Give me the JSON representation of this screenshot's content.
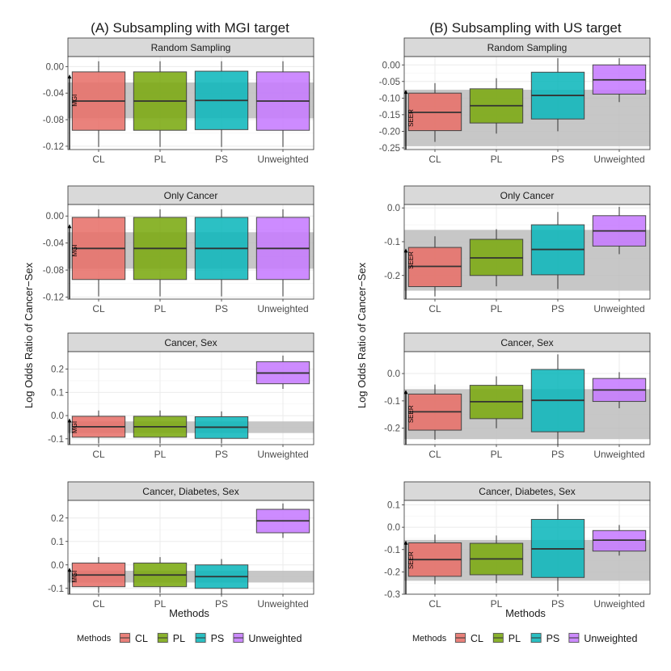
{
  "colors": {
    "CL": "#e8716a",
    "PL": "#7caa12",
    "PS": "#0fb8bc",
    "Unweighted": "#c77cff",
    "band": "#bdbdbd",
    "strip": "#d9d9d9",
    "grid": "#ebebeb"
  },
  "legend": {
    "title": "Methods",
    "items": [
      "CL",
      "PL",
      "PS",
      "Unweighted"
    ]
  },
  "shared_ylabel": "Log Odds Ratio of Cancer−Sex",
  "xlabel": "Methods",
  "chart_data": [
    {
      "type": "box",
      "column_title": "(A) Subsampling with MGI target",
      "panel": "Random Sampling",
      "target_label": "MGI",
      "band": [
        -0.078,
        -0.024
      ],
      "arrow_to": -0.012,
      "ylim": [
        -0.125,
        0.015
      ],
      "yticks": [
        0.0,
        -0.04,
        -0.08,
        -0.12
      ],
      "ytick_labels": [
        "0.00",
        "-0.04",
        "-0.08",
        "-0.12"
      ],
      "categories": [
        "CL",
        "PL",
        "PS",
        "Unweighted"
      ],
      "boxes": [
        {
          "method": "CL",
          "q1": -0.096,
          "median": -0.052,
          "q3": -0.008,
          "low": -0.121,
          "high": 0.008
        },
        {
          "method": "PL",
          "q1": -0.096,
          "median": -0.052,
          "q3": -0.008,
          "low": -0.121,
          "high": 0.008
        },
        {
          "method": "PS",
          "q1": -0.095,
          "median": -0.051,
          "q3": -0.007,
          "low": -0.121,
          "high": 0.008
        },
        {
          "method": "Unweighted",
          "q1": -0.096,
          "median": -0.052,
          "q3": -0.008,
          "low": -0.121,
          "high": 0.008
        }
      ]
    },
    {
      "type": "box",
      "column_title": "(B) Subsampling with US target",
      "panel": "Random Sampling",
      "target_label": "SEER",
      "band": [
        -0.245,
        -0.075
      ],
      "arrow_to": -0.075,
      "ylim": [
        -0.255,
        0.025
      ],
      "yticks": [
        0.0,
        -0.05,
        -0.1,
        -0.15,
        -0.2,
        -0.25
      ],
      "ytick_labels": [
        "0.00",
        "-0.05",
        "-0.10",
        "-0.15",
        "-0.20",
        "-0.25"
      ],
      "categories": [
        "CL",
        "PL",
        "PS",
        "Unweighted"
      ],
      "boxes": [
        {
          "method": "CL",
          "q1": -0.198,
          "median": -0.143,
          "q3": -0.085,
          "low": -0.232,
          "high": -0.055
        },
        {
          "method": "PL",
          "q1": -0.175,
          "median": -0.123,
          "q3": -0.072,
          "low": -0.207,
          "high": -0.04
        },
        {
          "method": "PS",
          "q1": -0.163,
          "median": -0.092,
          "q3": -0.022,
          "low": -0.2,
          "high": 0.02
        },
        {
          "method": "Unweighted",
          "q1": -0.088,
          "median": -0.045,
          "q3": 0.0,
          "low": -0.112,
          "high": 0.02
        }
      ]
    },
    {
      "type": "box",
      "panel": "Only Cancer",
      "target_label": "MGI",
      "band": [
        -0.078,
        -0.024
      ],
      "arrow_to": -0.012,
      "ylim": [
        -0.123,
        0.017
      ],
      "yticks": [
        0.0,
        -0.04,
        -0.08,
        -0.12
      ],
      "ytick_labels": [
        "0.00",
        "-0.04",
        "-0.08",
        "-0.12"
      ],
      "categories": [
        "CL",
        "PL",
        "PS",
        "Unweighted"
      ],
      "boxes": [
        {
          "method": "CL",
          "q1": -0.094,
          "median": -0.048,
          "q3": -0.002,
          "low": -0.119,
          "high": 0.01
        },
        {
          "method": "PL",
          "q1": -0.094,
          "median": -0.048,
          "q3": -0.002,
          "low": -0.119,
          "high": 0.01
        },
        {
          "method": "PS",
          "q1": -0.094,
          "median": -0.048,
          "q3": -0.002,
          "low": -0.119,
          "high": 0.01
        },
        {
          "method": "Unweighted",
          "q1": -0.094,
          "median": -0.048,
          "q3": -0.002,
          "low": -0.119,
          "high": 0.01
        }
      ]
    },
    {
      "type": "box",
      "panel": "Only Cancer",
      "target_label": "SEER",
      "band": [
        -0.245,
        -0.065
      ],
      "arrow_to": -0.12,
      "ylim": [
        -0.27,
        0.01
      ],
      "yticks": [
        0.0,
        -0.1,
        -0.2
      ],
      "ytick_labels": [
        "0.0",
        "-0.1",
        "-0.2"
      ],
      "categories": [
        "CL",
        "PL",
        "PS",
        "Unweighted"
      ],
      "boxes": [
        {
          "method": "CL",
          "q1": -0.233,
          "median": -0.173,
          "q3": -0.117,
          "low": -0.262,
          "high": -0.084
        },
        {
          "method": "PL",
          "q1": -0.2,
          "median": -0.148,
          "q3": -0.093,
          "low": -0.232,
          "high": -0.063
        },
        {
          "method": "PS",
          "q1": -0.198,
          "median": -0.123,
          "q3": -0.05,
          "low": -0.24,
          "high": -0.012
        },
        {
          "method": "Unweighted",
          "q1": -0.113,
          "median": -0.068,
          "q3": -0.023,
          "low": -0.137,
          "high": 0.003
        }
      ]
    },
    {
      "type": "box",
      "panel": "Cancer, Sex",
      "target_label": "MGI",
      "band": [
        -0.075,
        -0.025
      ],
      "arrow_to": -0.012,
      "ylim": [
        -0.125,
        0.275
      ],
      "yticks": [
        0.2,
        0.1,
        0.0,
        -0.1
      ],
      "ytick_labels": [
        "0.2",
        "0.1",
        "0.0",
        "-0.1"
      ],
      "categories": [
        "CL",
        "PL",
        "PS",
        "Unweighted"
      ],
      "boxes": [
        {
          "method": "CL",
          "q1": -0.093,
          "median": -0.048,
          "q3": -0.003,
          "low": -0.12,
          "high": 0.022
        },
        {
          "method": "PL",
          "q1": -0.093,
          "median": -0.048,
          "q3": -0.003,
          "low": -0.12,
          "high": 0.022
        },
        {
          "method": "PS",
          "q1": -0.098,
          "median": -0.05,
          "q3": -0.005,
          "low": -0.12,
          "high": 0.018
        },
        {
          "method": "Unweighted",
          "q1": 0.137,
          "median": 0.183,
          "q3": 0.232,
          "low": 0.115,
          "high": 0.258
        }
      ]
    },
    {
      "type": "box",
      "panel": "Cancer, Sex",
      "target_label": "SEER",
      "band": [
        -0.24,
        -0.057
      ],
      "arrow_to": -0.06,
      "ylim": [
        -0.26,
        0.08
      ],
      "yticks": [
        0.0,
        -0.1,
        -0.2
      ],
      "ytick_labels": [
        "0.0",
        "-0.1",
        "-0.2"
      ],
      "categories": [
        "CL",
        "PL",
        "PS",
        "Unweighted"
      ],
      "boxes": [
        {
          "method": "CL",
          "q1": -0.207,
          "median": -0.14,
          "q3": -0.075,
          "low": -0.242,
          "high": -0.04
        },
        {
          "method": "PL",
          "q1": -0.165,
          "median": -0.103,
          "q3": -0.043,
          "low": -0.2,
          "high": -0.01
        },
        {
          "method": "PS",
          "q1": -0.213,
          "median": -0.098,
          "q3": 0.015,
          "low": -0.265,
          "high": 0.07
        },
        {
          "method": "Unweighted",
          "q1": -0.102,
          "median": -0.06,
          "q3": -0.018,
          "low": -0.127,
          "high": 0.005
        }
      ]
    },
    {
      "type": "box",
      "panel": "Cancer, Diabetes, Sex",
      "target_label": "MGI",
      "band": [
        -0.075,
        -0.025
      ],
      "arrow_to": -0.012,
      "ylim": [
        -0.125,
        0.275
      ],
      "yticks": [
        0.2,
        0.1,
        0.0,
        -0.1
      ],
      "ytick_labels": [
        "0.2",
        "0.1",
        "0.0",
        "-0.1"
      ],
      "categories": [
        "CL",
        "PL",
        "PS",
        "Unweighted"
      ],
      "boxes": [
        {
          "method": "CL",
          "q1": -0.093,
          "median": -0.043,
          "q3": 0.008,
          "low": -0.12,
          "high": 0.033
        },
        {
          "method": "PL",
          "q1": -0.093,
          "median": -0.043,
          "q3": 0.008,
          "low": -0.12,
          "high": 0.033
        },
        {
          "method": "PS",
          "q1": -0.1,
          "median": -0.05,
          "q3": 0.0,
          "low": -0.125,
          "high": 0.025
        },
        {
          "method": "Unweighted",
          "q1": 0.137,
          "median": 0.188,
          "q3": 0.237,
          "low": 0.115,
          "high": 0.262
        }
      ]
    },
    {
      "type": "box",
      "panel": "Cancer, Diabetes, Sex",
      "target_label": "SEER",
      "band": [
        -0.24,
        -0.057
      ],
      "arrow_to": -0.06,
      "ylim": [
        -0.3,
        0.12
      ],
      "yticks": [
        0.1,
        0.0,
        -0.1,
        -0.2,
        -0.3
      ],
      "ytick_labels": [
        "0.1",
        "0.0",
        "-0.1",
        "-0.2",
        "-0.3"
      ],
      "categories": [
        "CL",
        "PL",
        "PS",
        "Unweighted"
      ],
      "boxes": [
        {
          "method": "CL",
          "q1": -0.22,
          "median": -0.145,
          "q3": -0.07,
          "low": -0.255,
          "high": -0.033
        },
        {
          "method": "PL",
          "q1": -0.213,
          "median": -0.142,
          "q3": -0.072,
          "low": -0.25,
          "high": -0.037
        },
        {
          "method": "PS",
          "q1": -0.225,
          "median": -0.097,
          "q3": 0.035,
          "low": -0.285,
          "high": 0.103
        },
        {
          "method": "Unweighted",
          "q1": -0.107,
          "median": -0.058,
          "q3": -0.015,
          "low": -0.127,
          "high": 0.01
        }
      ]
    }
  ]
}
